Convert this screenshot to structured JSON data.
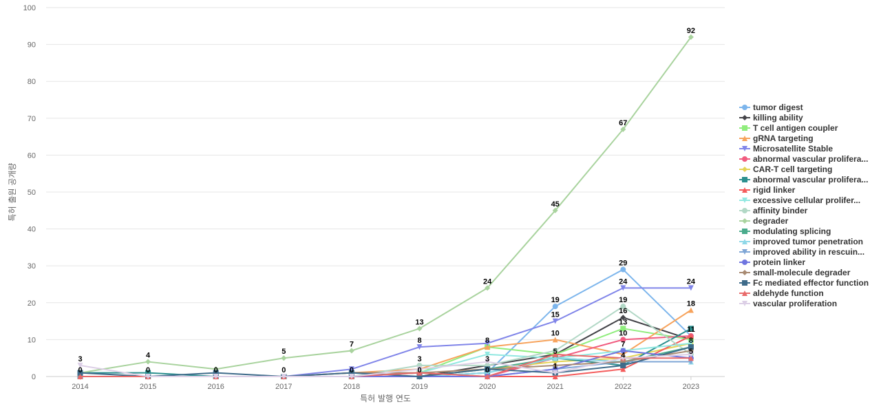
{
  "chart_data": {
    "type": "line",
    "title": "",
    "xlabel": "특허 발행 연도",
    "ylabel": "특허 출원 공개량",
    "ylim": [
      0,
      100
    ],
    "yticks": [
      0,
      10,
      20,
      30,
      40,
      50,
      60,
      70,
      80,
      90,
      100
    ],
    "x": [
      "2014",
      "2015",
      "2016",
      "2017",
      "2018",
      "2019",
      "2020",
      "2021",
      "2022",
      "2023"
    ],
    "legend_position": "right",
    "grid": true,
    "series": [
      {
        "name": "tumor digest",
        "color": "#7cb5ec",
        "marker": "circle",
        "values": [
          0,
          0,
          0,
          0,
          0,
          0,
          1,
          19,
          29,
          11
        ]
      },
      {
        "name": "killing ability",
        "color": "#434348",
        "marker": "diamond",
        "values": [
          0,
          0,
          0,
          0,
          0,
          0,
          3,
          6,
          16,
          10
        ]
      },
      {
        "name": "T cell antigen coupler",
        "color": "#90ed7d",
        "marker": "square",
        "values": [
          0,
          0,
          0,
          0,
          0,
          1,
          8,
          6,
          13,
          10
        ]
      },
      {
        "name": "gRNA targeting",
        "color": "#f7a35c",
        "marker": "triangle",
        "values": [
          0,
          0,
          0,
          0,
          1,
          2,
          8,
          10,
          6,
          18
        ]
      },
      {
        "name": "Microsatellite Stable",
        "color": "#8085e9",
        "marker": "triangle-down",
        "values": [
          0,
          0,
          0,
          0,
          2,
          8,
          9,
          15,
          24,
          24
        ]
      },
      {
        "name": "abnormal vascular prolifera...",
        "color": "#f15c80",
        "marker": "circle",
        "values": [
          0,
          0,
          0,
          0,
          0,
          1,
          0,
          5,
          10,
          11
        ]
      },
      {
        "name": "CAR-T cell targeting",
        "color": "#e4d354",
        "marker": "diamond",
        "values": [
          0,
          0,
          0,
          0,
          0,
          0,
          2,
          4,
          5,
          9
        ]
      },
      {
        "name": "abnormal vascular prolifera...",
        "color": "#2b908f",
        "marker": "square",
        "values": [
          1,
          1,
          0,
          0,
          0,
          0,
          1,
          5,
          3,
          13
        ]
      },
      {
        "name": "rigid linker",
        "color": "#f45b5b",
        "marker": "triangle",
        "values": [
          0,
          0,
          0,
          0,
          0,
          0,
          0,
          0,
          2,
          11
        ]
      },
      {
        "name": "excessive cellular prolifer...",
        "color": "#91e8e1",
        "marker": "triangle-down",
        "values": [
          0,
          0,
          0,
          0,
          0,
          1,
          6,
          5,
          7,
          9
        ]
      },
      {
        "name": "affinity binder",
        "color": "#b2d8c6",
        "marker": "circle",
        "values": [
          0,
          0,
          0,
          0,
          0,
          3,
          3,
          7,
          19,
          6
        ]
      },
      {
        "name": "degrader",
        "color": "#a9d39e",
        "marker": "diamond",
        "values": [
          1,
          4,
          2,
          5,
          7,
          13,
          24,
          45,
          67,
          92
        ]
      },
      {
        "name": "modulating splicing",
        "color": "#4aab8c",
        "marker": "square",
        "values": [
          0,
          0,
          0,
          0,
          0,
          0,
          2,
          5,
          4,
          8
        ]
      },
      {
        "name": "improved tumor penetration",
        "color": "#8ed8e8",
        "marker": "triangle",
        "values": [
          0,
          0,
          0,
          0,
          0,
          0,
          1,
          5,
          4,
          4
        ]
      },
      {
        "name": "improved ability in rescuin...",
        "color": "#7fa6d6",
        "marker": "triangle-down",
        "values": [
          0,
          0,
          0,
          0,
          0,
          0,
          0,
          2,
          4,
          4
        ]
      },
      {
        "name": "protein linker",
        "color": "#6f75e0",
        "marker": "circle",
        "values": [
          0,
          0,
          0,
          0,
          0,
          0,
          0,
          2,
          7,
          5
        ]
      },
      {
        "name": "small-molecule degrader",
        "color": "#a88a72",
        "marker": "diamond",
        "values": [
          0,
          0,
          0,
          0,
          1,
          1,
          2,
          3,
          4,
          7
        ]
      },
      {
        "name": "Fc mediated effector function",
        "color": "#3e6b8a",
        "marker": "square",
        "values": [
          1,
          0,
          1,
          0,
          1,
          0,
          2,
          1,
          3,
          8
        ]
      },
      {
        "name": "aldehyde function",
        "color": "#e86a6a",
        "marker": "triangle",
        "values": [
          0,
          0,
          0,
          0,
          0,
          1,
          0,
          6,
          5,
          5
        ]
      },
      {
        "name": "vascular proliferation",
        "color": "#dccfe6",
        "marker": "triangle-down",
        "values": [
          3,
          0,
          0,
          0,
          0,
          2,
          4,
          1,
          5,
          6
        ]
      }
    ],
    "data_labels": [
      {
        "x": "2014",
        "values": [
          "3",
          "0"
        ]
      },
      {
        "x": "2015",
        "values": [
          "4",
          "0"
        ]
      },
      {
        "x": "2016",
        "values": [
          "0"
        ]
      },
      {
        "x": "2017",
        "values": [
          "5",
          "0"
        ]
      },
      {
        "x": "2018",
        "values": [
          "7",
          "0"
        ]
      },
      {
        "x": "2019",
        "values": [
          "13",
          "8",
          "3",
          "0"
        ]
      },
      {
        "x": "2020",
        "values": [
          "24",
          "8",
          "3",
          "0"
        ]
      },
      {
        "x": "2021",
        "values": [
          "45",
          "19",
          "15",
          "10",
          "5",
          "1"
        ]
      },
      {
        "x": "2022",
        "values": [
          "67",
          "29",
          "24",
          "19",
          "16",
          "13",
          "10",
          "7",
          "4"
        ]
      },
      {
        "x": "2023",
        "values": [
          "92",
          "24",
          "18",
          "11",
          "8",
          "5"
        ]
      }
    ]
  }
}
